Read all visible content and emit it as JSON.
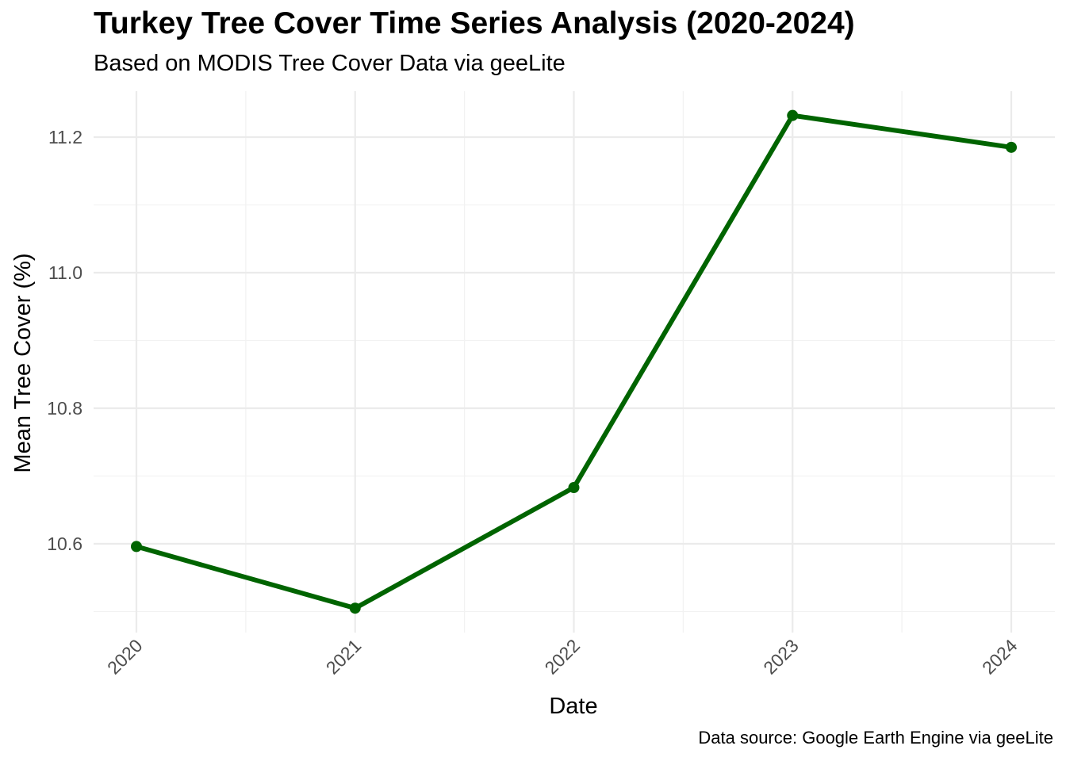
{
  "chart_data": {
    "type": "line",
    "title": "Turkey Tree Cover Time Series Analysis (2020-2024)",
    "subtitle": "Based on MODIS Tree Cover Data via geeLite",
    "caption": "Data source: Google Earth Engine via geeLite",
    "xlabel": "Date",
    "ylabel": "Mean Tree Cover (%)",
    "x": [
      "2020",
      "2021",
      "2022",
      "2023",
      "2024"
    ],
    "series": [
      {
        "values": [
          10.596,
          10.505,
          10.683,
          11.232,
          11.185
        ]
      }
    ],
    "x_ticks": [
      "2020",
      "2021",
      "2022",
      "2023",
      "2024"
    ],
    "y_ticks": [
      "10.6",
      "10.8",
      "11.0",
      "11.2"
    ],
    "ylim": [
      10.48,
      11.265
    ],
    "grid": true,
    "legend": "none",
    "colors": {
      "line": "#006400",
      "grid": "#ebebeb"
    }
  }
}
